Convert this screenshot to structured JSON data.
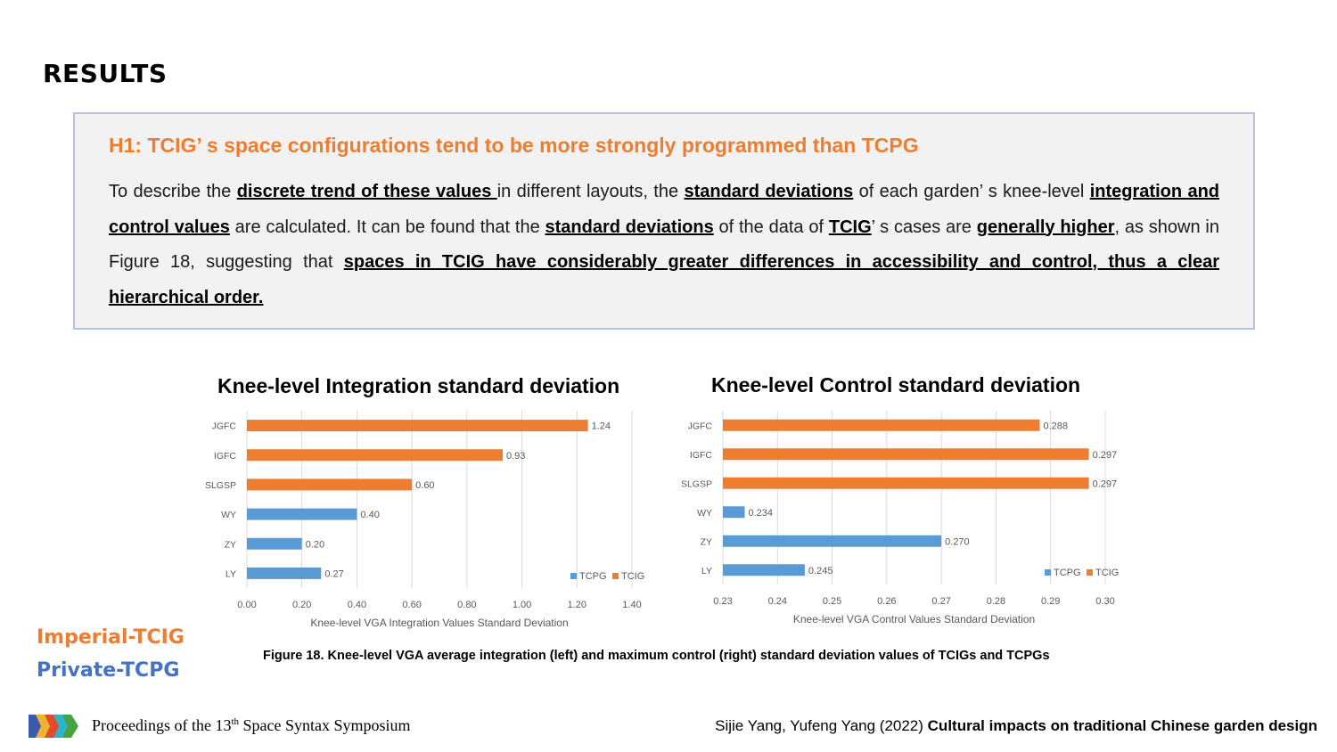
{
  "header": {
    "title": "RESULTS"
  },
  "hypothesis": {
    "title": "H1: TCIG’ s space configurations tend to be more strongly programmed than TCPG",
    "segments": [
      {
        "t": "To describe the ",
        "b": false
      },
      {
        "t": "discrete trend of these values ",
        "b": true
      },
      {
        "t": "in different layouts, the ",
        "b": false
      },
      {
        "t": "standard deviations",
        "b": true
      },
      {
        "t": " of each garden’ s knee-level ",
        "b": false
      },
      {
        "t": "integration and control values",
        "b": true
      },
      {
        "t": " are calculated. It can be found that the ",
        "b": false
      },
      {
        "t": "standard deviations",
        "b": true
      },
      {
        "t": " of the data of ",
        "b": false
      },
      {
        "t": "TCIG",
        "b": true
      },
      {
        "t": "’ s cases are ",
        "b": false
      },
      {
        "t": "generally higher",
        "b": true
      },
      {
        "t": ", as shown in Figure 18, suggesting that ",
        "b": false
      },
      {
        "t": "spaces in TCIG have considerably greater differences in accessibility and control, thus a clear hierarchical order.",
        "b": true
      }
    ]
  },
  "legend": {
    "imperial": "Imperial-TCIG",
    "private": "Private-TCPG"
  },
  "caption": "Figure 18. Knee-level VGA average integration (left) and maximum control (right) standard deviation values of TCIGs and TCPGs",
  "footer": {
    "proceedings_prefix": "Proceedings of the 13",
    "proceedings_sup": "th",
    "proceedings_suffix": " Space Syntax Symposium",
    "authors": "Sijie Yang, Yufeng Yang (2022) ",
    "paper_title": "Cultural impacts on traditional Chinese garden design"
  },
  "colors": {
    "tcpg": "#5b9bd5",
    "tcig": "#ed7d31",
    "grid": "#d9d9d9",
    "axis_text": "#595959"
  },
  "chart_data": [
    {
      "type": "bar",
      "orientation": "horizontal",
      "title": "Knee-level Integration standard deviation",
      "xlabel": "Knee-level VGA Integration Values Standard Deviation",
      "categories": [
        "JGFC",
        "IGFC",
        "SLGSP",
        "WY",
        "ZY",
        "LY"
      ],
      "values": [
        1.24,
        0.93,
        0.6,
        0.4,
        0.2,
        0.27
      ],
      "labels": [
        "1.24",
        "0.93",
        "0.60",
        "0.40",
        "0.20",
        "0.27"
      ],
      "groups": [
        "TCIG",
        "TCIG",
        "TCIG",
        "TCPG",
        "TCPG",
        "TCPG"
      ],
      "legend": [
        "TCPG",
        "TCIG"
      ],
      "xlim": [
        0,
        1.4
      ],
      "ticks": [
        "0.00",
        "0.20",
        "0.40",
        "0.60",
        "0.80",
        "1.00",
        "1.20",
        "1.40"
      ],
      "grid": true,
      "legend_position": "bottom-right"
    },
    {
      "type": "bar",
      "orientation": "horizontal",
      "title": "Knee-level Control standard deviation",
      "xlabel": "Knee-level VGA Control Values Standard Deviation",
      "categories": [
        "JGFC",
        "IGFC",
        "SLGSP",
        "WY",
        "ZY",
        "LY"
      ],
      "values": [
        0.288,
        0.297,
        0.297,
        0.234,
        0.27,
        0.245
      ],
      "labels": [
        "0.288",
        "0.297",
        "0.297",
        "0.234",
        "0.270",
        "0.245"
      ],
      "groups": [
        "TCIG",
        "TCIG",
        "TCIG",
        "TCPG",
        "TCPG",
        "TCPG"
      ],
      "legend": [
        "TCPG",
        "TCIG"
      ],
      "xlim": [
        0.23,
        0.3
      ],
      "ticks": [
        "0.23",
        "0.24",
        "0.25",
        "0.26",
        "0.27",
        "0.28",
        "0.29",
        "0.30"
      ],
      "grid": true,
      "legend_position": "bottom-right"
    }
  ]
}
